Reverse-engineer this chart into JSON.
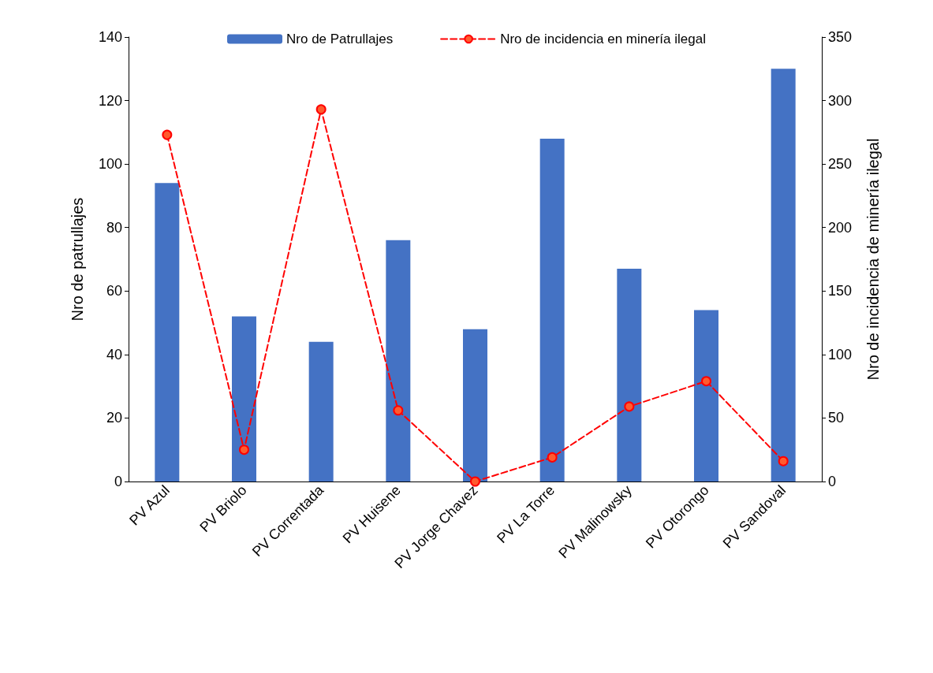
{
  "chart_data": {
    "type": "bar",
    "ylabel": "Nro de patrullajes",
    "y2label": "Nro de incidencia de minería ilegal",
    "categories": [
      "PV Azul",
      "PV Briolo",
      "PV Correntada",
      "PV Huisene",
      "PV Jorge Chavez",
      "PV La Torre",
      "PV Malinowsky",
      "PV Otorongo",
      "PV Sandoval"
    ],
    "series": [
      {
        "name": "Nro de Patrullajes",
        "color": "#4472c4",
        "values": [
          94,
          52,
          44,
          76,
          48,
          108,
          67,
          54,
          130
        ]
      },
      {
        "name": "Nro de incidencia en minería ilegal",
        "type": "line",
        "axis": "y2",
        "color": "#ff0000",
        "marker": "circle",
        "line_style": "dashed",
        "values": [
          273,
          25,
          293,
          56,
          0,
          19,
          59,
          79,
          16
        ]
      }
    ],
    "ylim": [
      0,
      140
    ],
    "yticks": [
      0,
      20,
      40,
      60,
      80,
      100,
      120,
      140
    ],
    "y2lim": [
      0,
      350
    ],
    "y2ticks": [
      0,
      50,
      100,
      150,
      200,
      250,
      300,
      350
    ],
    "grid": false,
    "legend": "top"
  }
}
